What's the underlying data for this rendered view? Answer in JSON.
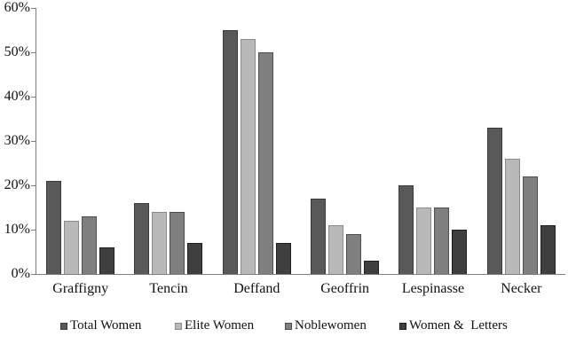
{
  "chart_data": {
    "type": "bar",
    "title": "",
    "categories": [
      "Graffigny",
      "Tencin",
      "Deffand",
      "Geoffrin",
      "Lespinasse",
      "Necker"
    ],
    "series": [
      {
        "name": "Total Women",
        "color": "#595959",
        "border_color": "#3b3b3b",
        "values": [
          21,
          16,
          55,
          17,
          20,
          33
        ]
      },
      {
        "name": "Elite Women",
        "color": "#b9b9b9",
        "border_color": "#8a8a8a",
        "values": [
          12,
          14,
          53,
          11,
          15,
          26
        ]
      },
      {
        "name": "Noblewomen",
        "color": "#7f7f7f",
        "border_color": "#4f4f4f",
        "values": [
          13,
          14,
          50,
          9,
          15,
          22
        ]
      },
      {
        "name": "Women &  Letters",
        "color": "#3f3f3f",
        "border_color": "#1f1f1f",
        "values": [
          6,
          7,
          7,
          3,
          10,
          11
        ]
      }
    ],
    "xlabel": "",
    "ylabel": "",
    "ylim": [
      0,
      60
    ],
    "ytick_step": 10,
    "ytick_labels": [
      "0%",
      "10%",
      "20%",
      "30%",
      "40%",
      "50%",
      "60%"
    ],
    "grid": false,
    "legend_position": "bottom",
    "axis_color": "#7f7f7f",
    "background_color": "#ffffff"
  }
}
